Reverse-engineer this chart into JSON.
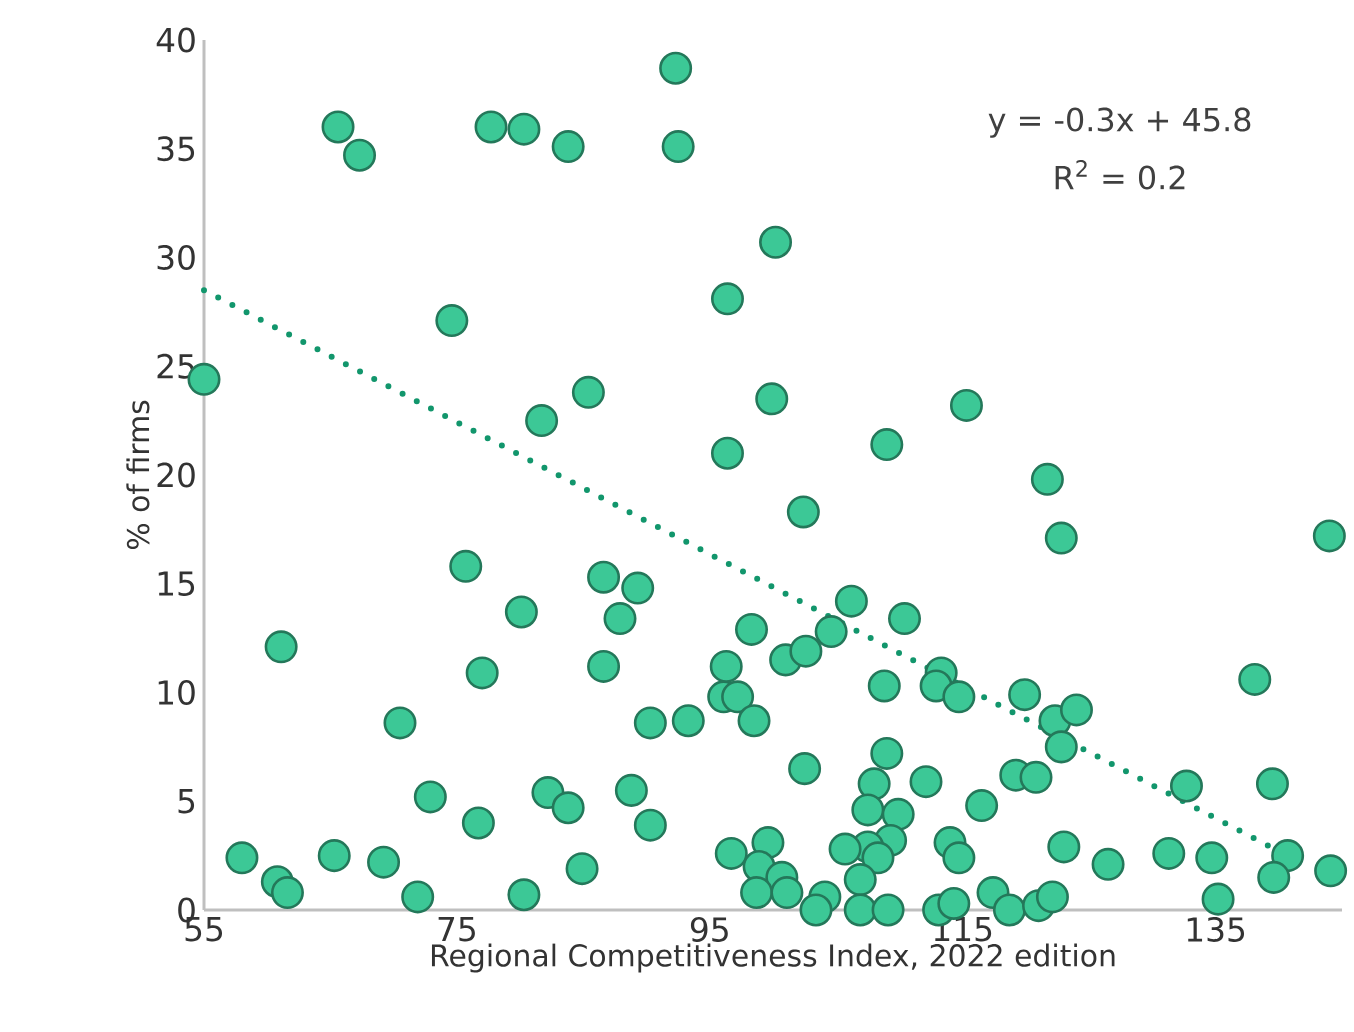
{
  "chart_data": {
    "type": "scatter",
    "xlabel": "Regional Competitiveness Index, 2022 edition",
    "ylabel": "% of firms",
    "annotations": [
      "y = -0.3x + 45.8",
      "R$^{2}$ = 0.2"
    ],
    "xlim": [
      55,
      145
    ],
    "xticks": [
      55,
      75,
      95,
      115,
      135
    ],
    "ylim": [
      0,
      40
    ],
    "yticks": [
      0,
      5,
      10,
      15,
      20,
      25,
      30,
      35,
      40
    ],
    "grid": false,
    "marker": "circle",
    "series": [
      {
        "color": "#3cc896",
        "x": [
          55,
          58,
          60.8,
          61.6,
          61.1,
          65.6,
          67.3,
          65.3,
          69.2,
          70.5,
          71.9,
          72.9,
          74.6,
          75.7,
          76.7,
          77,
          77.7,
          80.3,
          80.1,
          80.3,
          81.7,
          82.2,
          83.8,
          83.8,
          84.9,
          85.4,
          86.6,
          86.6,
          87.9,
          89.3,
          88.8,
          90.3,
          90.3,
          92.3,
          92.5,
          93.3,
          96.1,
          96.3,
          96.4,
          96.4,
          96.7,
          97.2,
          98.3,
          98.5,
          101.0,
          102.6,
          104.6,
          106.2,
          110.4,
          108.8,
          113.3,
          112.9,
          114.7,
          119.9,
          102.5,
          109.0,
          108.0,
          112.1,
          107.5,
          109.9,
          116.5,
          109.3,
          107.5,
          108.3,
          105.7,
          106.9,
          114.0,
          114.7,
          119.2,
          120.8,
          99.6,
          98.9,
          100.7,
          98.7,
          101.1,
          104.1,
          103.4,
          106.9,
          109.1,
          113.1,
          114.3,
          117.4,
          118.7,
          121.0,
          122.1,
          100.2,
          99.9,
          109.0,
          115.3,
          102.4,
          121.7,
          122.8,
          144.0,
          138.1,
          122.3,
          124.0,
          122.8,
          132.7,
          139.5,
          123.0,
          126.5,
          131.3,
          134.7,
          140.7,
          139.6,
          144.1,
          135.2
        ],
        "values": [
          24.4,
          2.4,
          1.3,
          0.8,
          12.1,
          36.0,
          34.7,
          2.5,
          2.2,
          8.6,
          0.6,
          5.2,
          27.1,
          15.8,
          4.0,
          10.9,
          36.0,
          35.9,
          13.7,
          0.7,
          22.5,
          5.4,
          4.7,
          35.1,
          1.9,
          23.8,
          15.3,
          11.2,
          13.4,
          14.8,
          5.5,
          8.6,
          3.9,
          38.7,
          35.1,
          8.7,
          9.8,
          11.2,
          21.0,
          28.1,
          2.6,
          9.8,
          12.9,
          8.7,
          11.5,
          11.9,
          12.8,
          14.2,
          13.4,
          10.3,
          10.9,
          10.3,
          9.8,
          9.9,
          6.5,
          7.2,
          5.8,
          5.9,
          4.6,
          4.4,
          4.8,
          3.2,
          2.9,
          2.4,
          2.8,
          1.4,
          3.1,
          2.4,
          6.2,
          6.1,
          3.1,
          2.0,
          1.5,
          0.8,
          0.8,
          0.6,
          0.0,
          0.0,
          0.0,
          0.0,
          0.3,
          0.8,
          0.0,
          0.2,
          0.6,
          30.7,
          23.5,
          21.4,
          23.2,
          18.3,
          19.8,
          17.1,
          17.2,
          10.6,
          8.7,
          9.2,
          7.5,
          5.7,
          5.8,
          2.9,
          2.1,
          2.6,
          2.4,
          2.5,
          1.5,
          1.8,
          0.5
        ]
      },
      {
        "type": "line",
        "color": "#12966c",
        "line_style": "dotted",
        "marker": "none",
        "x": [
          55,
          142
        ],
        "values": [
          28.5,
          2.1
        ]
      }
    ]
  }
}
